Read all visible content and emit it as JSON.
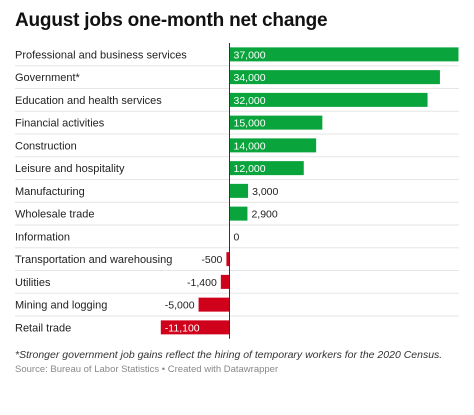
{
  "title": "August jobs one-month net change",
  "note": "*Stronger government job gains reflect the hiring of temporary workers for the 2020 Census.",
  "source": "Source: Bureau of Labor Statistics • Created with Datawrapper",
  "colors": {
    "positive": "#0aa43c",
    "negative": "#d0021b",
    "axis": "#333333",
    "separator": "#e6e6e6"
  },
  "chart_data": {
    "type": "bar",
    "orientation": "horizontal",
    "title": "August jobs one-month net change",
    "xlim": [
      -11100,
      37000
    ],
    "grid": false,
    "categories": [
      "Professional and business services",
      "Government*",
      "Education and health services",
      "Financial activities",
      "Construction",
      "Leisure and hospitality",
      "Manufacturing",
      "Wholesale trade",
      "Information",
      "Transportation and warehousing",
      "Utilities",
      "Mining and logging",
      "Retail trade"
    ],
    "values": [
      37000,
      34000,
      32000,
      15000,
      14000,
      12000,
      3000,
      2900,
      0,
      -500,
      -1400,
      -5000,
      -11100
    ],
    "value_labels": [
      "37,000",
      "34,000",
      "32,000",
      "15,000",
      "14,000",
      "12,000",
      "3,000",
      "2,900",
      "0",
      "-500",
      "-1,400",
      "-5,000",
      "-11,100"
    ]
  }
}
